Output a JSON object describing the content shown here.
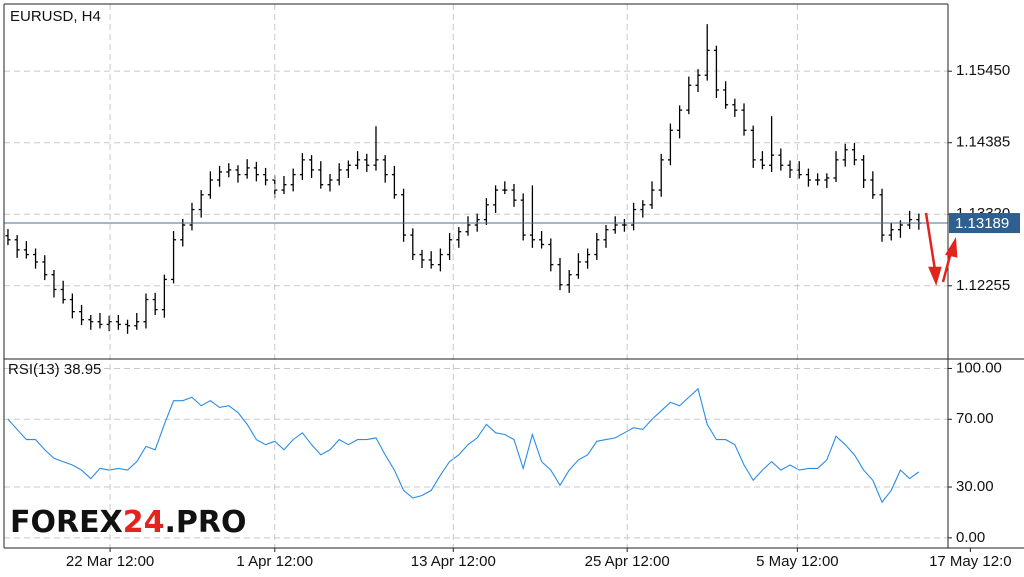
{
  "chart_data": [
    {
      "type": "ohlc",
      "title": "EURUSD, H4",
      "color": "#000000",
      "last_line_color": "#4a6f96",
      "last_label_color": "#2e5f8e",
      "xlim": [
        -0.43,
        102.17
      ],
      "ylim": [
        1.1118,
        1.1645
      ],
      "grid": true,
      "yticks": [
        {
          "value": 1.1545,
          "label": "1.15450"
        },
        {
          "value": 1.14385,
          "label": "1.14385"
        },
        {
          "value": 1.1332,
          "label": "1.13320"
        },
        {
          "value": 1.12255,
          "label": "1.12255"
        }
      ],
      "open": [
        1.13,
        1.1294,
        1.1279,
        1.1272,
        1.1261,
        1.1242,
        1.122,
        1.1205,
        1.1187,
        1.1175,
        1.1172,
        1.1168,
        1.1172,
        1.1168,
        1.1166,
        1.1172,
        1.1205,
        1.119,
        1.1235,
        1.1294,
        1.1316,
        1.1339,
        1.1361,
        1.1383,
        1.1395,
        1.1398,
        1.1391,
        1.1401,
        1.1391,
        1.1383,
        1.1368,
        1.1376,
        1.1391,
        1.1413,
        1.1398,
        1.1376,
        1.1383,
        1.1398,
        1.1405,
        1.1413,
        1.1405,
        1.1413,
        1.1391,
        1.1361,
        1.1301,
        1.1272,
        1.1264,
        1.1257,
        1.1272,
        1.1294,
        1.1306,
        1.1316,
        1.1324,
        1.1346,
        1.1368,
        1.1368,
        1.1353,
        1.1301,
        1.1294,
        1.1287,
        1.1257,
        1.1227,
        1.1242,
        1.1261,
        1.1272,
        1.1294,
        1.1309,
        1.1316,
        1.1316,
        1.1339,
        1.1346,
        1.1368,
        1.1413,
        1.1457,
        1.1487,
        1.1524,
        1.1539,
        1.1576,
        1.1517,
        1.1495,
        1.1487,
        1.1457,
        1.1413,
        1.1405,
        1.142,
        1.1405,
        1.1398,
        1.1391,
        1.1383,
        1.1383,
        1.1386,
        1.1413,
        1.1428,
        1.1413,
        1.1383,
        1.1361,
        1.1301,
        1.1309,
        1.1316,
        1.1324
      ],
      "high": [
        1.131,
        1.1301,
        1.1292,
        1.1281,
        1.1271,
        1.1249,
        1.1233,
        1.1214,
        1.1197,
        1.1182,
        1.1185,
        1.1181,
        1.1182,
        1.1175,
        1.1185,
        1.1214,
        1.1215,
        1.1242,
        1.1307,
        1.1325,
        1.1349,
        1.1368,
        1.1396,
        1.1404,
        1.1408,
        1.1405,
        1.1414,
        1.141,
        1.1401,
        1.139,
        1.1389,
        1.14,
        1.1423,
        1.142,
        1.1411,
        1.1392,
        1.1408,
        1.1412,
        1.1426,
        1.1422,
        1.1463,
        1.142,
        1.1404,
        1.137,
        1.1311,
        1.1279,
        1.1277,
        1.1281,
        1.1304,
        1.1313,
        1.1329,
        1.1333,
        1.1356,
        1.1375,
        1.1381,
        1.1377,
        1.1363,
        1.1375,
        1.1307,
        1.1296,
        1.1267,
        1.1249,
        1.1274,
        1.1281,
        1.1304,
        1.1316,
        1.1329,
        1.1325,
        1.1349,
        1.1353,
        1.1381,
        1.1422,
        1.1467,
        1.1494,
        1.1537,
        1.1548,
        1.1615,
        1.1583,
        1.153,
        1.1504,
        1.1497,
        1.1464,
        1.1426,
        1.1478,
        1.143,
        1.1412,
        1.1411,
        1.14,
        1.1393,
        1.1393,
        1.1426,
        1.1437,
        1.1438,
        1.142,
        1.1396,
        1.137,
        1.1319,
        1.1323,
        1.1337,
        1.1333
      ],
      "low": [
        1.1286,
        1.1267,
        1.1266,
        1.1251,
        1.1234,
        1.1208,
        1.1199,
        1.1177,
        1.1167,
        1.116,
        1.1162,
        1.1158,
        1.116,
        1.1154,
        1.116,
        1.1162,
        1.1182,
        1.1178,
        1.1229,
        1.1284,
        1.1308,
        1.1327,
        1.1355,
        1.1373,
        1.1387,
        1.1379,
        1.1385,
        1.1381,
        1.1375,
        1.1356,
        1.1362,
        1.1366,
        1.1383,
        1.1386,
        1.137,
        1.1366,
        1.1375,
        1.1386,
        1.1399,
        1.1395,
        1.1397,
        1.1379,
        1.1355,
        1.1291,
        1.1264,
        1.1252,
        1.1251,
        1.1247,
        1.1264,
        1.1282,
        1.13,
        1.1306,
        1.1316,
        1.1334,
        1.1362,
        1.1343,
        1.1293,
        1.1282,
        1.1281,
        1.1247,
        1.1219,
        1.1215,
        1.1236,
        1.1251,
        1.1264,
        1.1282,
        1.1303,
        1.1306,
        1.1308,
        1.1327,
        1.134,
        1.1358,
        1.1405,
        1.1445,
        1.1481,
        1.1514,
        1.1531,
        1.1505,
        1.1489,
        1.1477,
        1.1449,
        1.1401,
        1.1399,
        1.1395,
        1.1397,
        1.1386,
        1.1385,
        1.1373,
        1.1375,
        1.1371,
        1.138,
        1.1403,
        1.1405,
        1.1371,
        1.1355,
        1.1291,
        1.1293,
        1.1297,
        1.131,
        1.1309
      ],
      "close": [
        1.1294,
        1.1279,
        1.1272,
        1.1261,
        1.1242,
        1.122,
        1.1205,
        1.1187,
        1.1175,
        1.1172,
        1.1168,
        1.1172,
        1.1168,
        1.1166,
        1.1172,
        1.1205,
        1.119,
        1.1235,
        1.1294,
        1.1316,
        1.1339,
        1.1361,
        1.1383,
        1.1395,
        1.1398,
        1.1391,
        1.1401,
        1.1391,
        1.1383,
        1.1368,
        1.1376,
        1.1391,
        1.1413,
        1.1398,
        1.1376,
        1.1383,
        1.1398,
        1.1405,
        1.1413,
        1.1405,
        1.1413,
        1.1391,
        1.1361,
        1.1301,
        1.1272,
        1.1264,
        1.1257,
        1.1272,
        1.1294,
        1.1306,
        1.1316,
        1.1324,
        1.1346,
        1.1368,
        1.1368,
        1.1353,
        1.1301,
        1.1294,
        1.1287,
        1.1257,
        1.1227,
        1.1242,
        1.1261,
        1.1272,
        1.1294,
        1.1309,
        1.1316,
        1.1316,
        1.1339,
        1.1346,
        1.1368,
        1.1413,
        1.1457,
        1.1487,
        1.1524,
        1.1539,
        1.1576,
        1.1517,
        1.1495,
        1.1487,
        1.1457,
        1.1413,
        1.1405,
        1.142,
        1.1405,
        1.1398,
        1.1391,
        1.1383,
        1.1383,
        1.1386,
        1.1413,
        1.1428,
        1.1413,
        1.1383,
        1.1361,
        1.1301,
        1.1309,
        1.1316,
        1.1324,
        1.13189
      ]
    },
    {
      "type": "line",
      "title": "RSI(13)",
      "color": "#2b8ce6",
      "xlim": [
        -0.43,
        102.17
      ],
      "ylim": [
        -6,
        105
      ],
      "grid": true,
      "yticks": [
        {
          "value": 100,
          "label": "100.00"
        },
        {
          "value": 70,
          "label": "70.00"
        },
        {
          "value": 30,
          "label": "30.00"
        },
        {
          "value": 0,
          "label": "0.00"
        }
      ],
      "xticks": [
        {
          "value": 11.1,
          "label": "22 Mar 12:00"
        },
        {
          "value": 29,
          "label": "1 Apr 12:00"
        },
        {
          "value": 48.4,
          "label": "13 Apr 12:00"
        },
        {
          "value": 67.3,
          "label": "25 Apr 12:00"
        },
        {
          "value": 85.8,
          "label": "5 May 12:00"
        },
        {
          "value": 104.6,
          "label": "17 May 12:0"
        }
      ],
      "values": [
        70,
        64,
        58,
        58,
        52,
        47,
        45,
        43,
        40,
        35,
        41,
        40,
        41,
        40,
        45,
        54,
        52,
        67,
        81,
        81,
        83,
        78,
        81,
        77,
        78,
        74,
        67,
        58,
        55,
        57,
        52,
        58,
        62,
        55,
        49,
        52,
        58,
        55,
        58,
        58,
        59,
        49,
        40,
        28,
        23.5,
        25,
        28,
        37,
        45,
        49,
        55,
        59,
        67,
        62,
        61,
        58,
        41,
        61,
        45,
        40,
        31,
        40,
        46,
        49,
        57,
        58,
        59,
        62,
        65,
        64,
        70,
        75,
        80,
        78,
        83,
        88,
        67,
        58,
        58,
        55,
        43,
        34,
        40,
        45,
        40,
        43,
        40,
        41,
        41,
        46,
        60,
        55,
        49,
        40,
        34,
        21,
        28,
        40,
        35,
        38.95
      ]
    }
  ],
  "watermark": [
    "FOREX",
    "24",
    ".PRO"
  ]
}
